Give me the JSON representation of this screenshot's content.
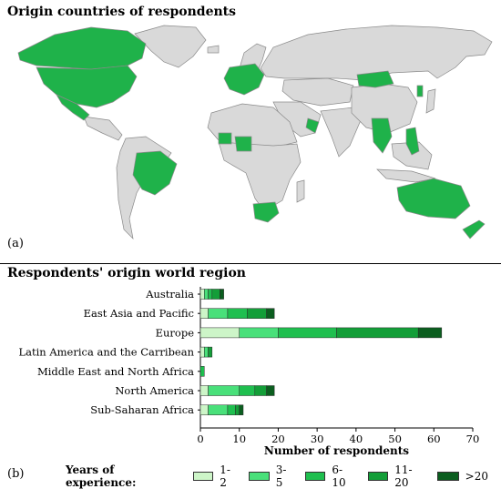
{
  "map_title": "Origin countries of respondents",
  "map_panel_label": "(a)",
  "chart_panel_label": "(b)",
  "colors": {
    "ocean": "#ffffff",
    "land": "#d9d9d9",
    "highlight": "#1fb24a",
    "border": "#8a8a8a"
  },
  "chart_data": {
    "type": "bar",
    "orientation": "horizontal",
    "stacked": true,
    "title": "Respondents' origin world region",
    "xlabel": "Number of respondents",
    "ylabel": "",
    "xlim": [
      0,
      70
    ],
    "xticks": [
      "0",
      "10",
      "20",
      "30",
      "40",
      "50",
      "60",
      "70"
    ],
    "grid": false,
    "legend_title": "Years of experience:",
    "legend_position": "bottom",
    "categories": [
      "Australia",
      "East Asia and Pacific",
      "Europe",
      "Latin America and the Carribean",
      "Middle East and North Africa",
      "North America",
      "Sub-Saharan Africa"
    ],
    "series": [
      {
        "name": "1-2",
        "color": "#cdf5c8",
        "values": [
          1,
          2,
          10,
          1,
          0,
          2,
          2
        ]
      },
      {
        "name": "3-5",
        "color": "#49e07a",
        "values": [
          1,
          5,
          10,
          1,
          0,
          8,
          5
        ]
      },
      {
        "name": "6-10",
        "color": "#1fbf4f",
        "values": [
          1,
          5,
          15,
          0,
          1,
          4,
          2
        ]
      },
      {
        "name": "11-20",
        "color": "#139e38",
        "values": [
          2,
          5,
          21,
          1,
          0,
          3,
          1
        ]
      },
      {
        "name": ">20",
        "color": "#0b5e1f",
        "values": [
          1,
          2,
          6,
          0,
          0,
          2,
          1
        ]
      }
    ]
  }
}
